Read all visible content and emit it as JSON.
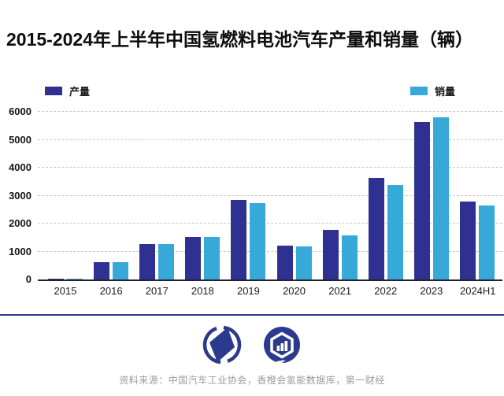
{
  "title": "2015-2024年上半年中国氢燃料电池汽车产量和销量（辆）",
  "legend": {
    "items": [
      {
        "label": "产量",
        "color": "#2E3192"
      },
      {
        "label": "销量",
        "color": "#36A9D9"
      }
    ]
  },
  "chart_data": {
    "type": "bar",
    "title": "2015-2024年上半年中国氢燃料电池汽车产量和销量（辆）",
    "categories": [
      "2015",
      "2016",
      "2017",
      "2018",
      "2019",
      "2020",
      "2021",
      "2022",
      "2023",
      "2024H1"
    ],
    "series": [
      {
        "name": "产量",
        "color": "#2E3192",
        "values": [
          10,
          629,
          1275,
          1527,
          2833,
          1199,
          1777,
          3626,
          5631,
          2780
        ]
      },
      {
        "name": "销量",
        "color": "#36A9D9",
        "values": [
          10,
          629,
          1275,
          1527,
          2737,
          1177,
          1586,
          3367,
          5805,
          2644
        ]
      }
    ],
    "ylim": [
      0,
      6000
    ],
    "yticks": [
      0,
      1000,
      2000,
      3000,
      4000,
      5000,
      6000
    ],
    "grid": "horizontal-dashed",
    "legend_position": "top"
  },
  "footer": {
    "source": "资料来源：中国汽车工业协会，香橙会氢能数据库，第一财经",
    "logos": [
      "yicai-logo",
      "hydrogen-data-logo"
    ]
  },
  "colors": {
    "production": "#2E3192",
    "sales": "#36A9D9",
    "divider": "#2B3A8C",
    "logo": "#2B3A8C",
    "axis": "#23232F",
    "grid": "#C9C9C9",
    "source_text": "#9B9B9B"
  }
}
